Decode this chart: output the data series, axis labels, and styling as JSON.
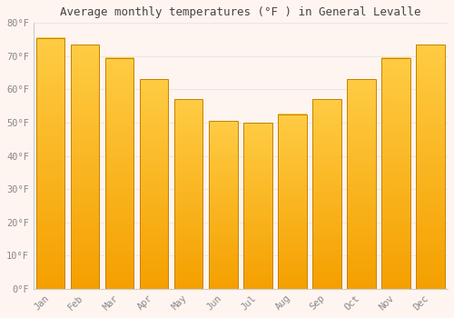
{
  "title": "Average monthly temperatures (°F ) in General Levalle",
  "months": [
    "Jan",
    "Feb",
    "Mar",
    "Apr",
    "May",
    "Jun",
    "Jul",
    "Aug",
    "Sep",
    "Oct",
    "Nov",
    "Dec"
  ],
  "values": [
    75.5,
    73.5,
    69.5,
    63,
    57,
    50.5,
    50,
    52.5,
    57,
    63,
    69.5,
    73.5
  ],
  "bar_color_top": "#FFCC44",
  "bar_color_bottom": "#F5A000",
  "bar_edge_color": "#C88000",
  "background_color": "#FFF5F0",
  "plot_bg_color": "#FFF5F0",
  "grid_color": "#E8E8E8",
  "tick_label_color": "#888888",
  "title_color": "#444444",
  "ylim": [
    0,
    80
  ],
  "yticks": [
    0,
    10,
    20,
    30,
    40,
    50,
    60,
    70,
    80
  ],
  "ytick_labels": [
    "0°F",
    "10°F",
    "20°F",
    "30°F",
    "40°F",
    "50°F",
    "60°F",
    "70°F",
    "80°F"
  ]
}
